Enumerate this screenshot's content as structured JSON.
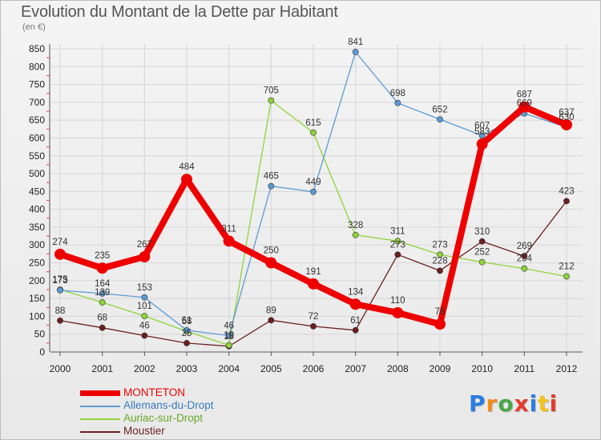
{
  "header": {
    "title": "Evolution du Montant de la Dette par Habitant",
    "subtitle": "(en €)"
  },
  "chart_data": {
    "type": "line",
    "title": "Evolution du Montant de la Dette par Habitant",
    "ylabel": "(en €)",
    "xlabel": "",
    "ylim": [
      0,
      850
    ],
    "yticks": [
      0,
      50,
      100,
      150,
      200,
      250,
      300,
      350,
      400,
      450,
      500,
      550,
      600,
      650,
      700,
      750,
      800,
      850
    ],
    "grid": true,
    "legend_position": "bottom-left",
    "categories": [
      "2000",
      "2001",
      "2002",
      "2003",
      "2004",
      "2005",
      "2006",
      "2007",
      "2008",
      "2009",
      "2010",
      "2011",
      "2012"
    ],
    "series": [
      {
        "name": "Moustier",
        "color": "#6b1f1f",
        "values": [
          88,
          68,
          46,
          25,
          16,
          89,
          72,
          61,
          273,
          228,
          310,
          269,
          423
        ]
      },
      {
        "name": "Auriac-sur-Dropt",
        "color": "#8fd43a",
        "values": [
          175,
          139,
          101,
          58,
          19,
          705,
          615,
          328,
          311,
          273,
          252,
          234,
          212
        ]
      },
      {
        "name": "Allemans-du-Dropt",
        "color": "#5b9bd5",
        "values": [
          173,
          164,
          153,
          61,
          46,
          465,
          449,
          841,
          698,
          652,
          607,
          669,
          630
        ]
      },
      {
        "name": "MONTETON",
        "color": "#ee0000",
        "values": [
          274,
          235,
          267,
          484,
          311,
          250,
          191,
          134,
          110,
          78,
          583,
          687,
          637
        ]
      }
    ]
  },
  "legend": {
    "items": [
      {
        "label": "MONTETON",
        "color": "#ee0000"
      },
      {
        "label": "Allemans-du-Dropt",
        "color": "#5b9bd5"
      },
      {
        "label": "Auriac-sur-Dropt",
        "color": "#8fd43a"
      },
      {
        "label": "Moustier",
        "color": "#6b1f1f"
      }
    ]
  },
  "logo": {
    "text": "Proxiti"
  }
}
